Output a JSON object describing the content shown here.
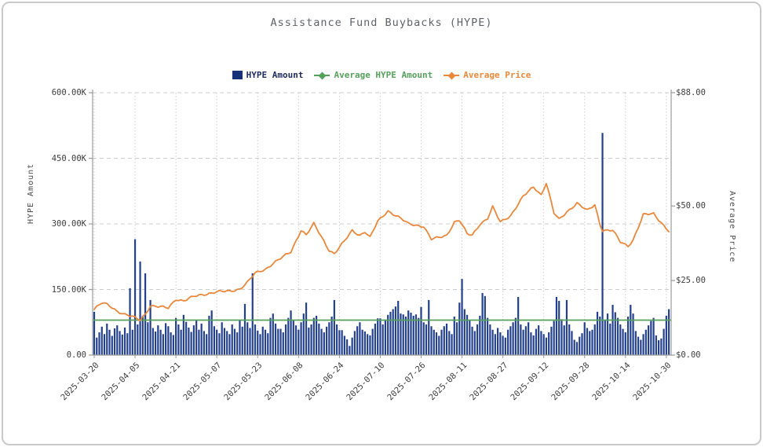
{
  "title": "Assistance Fund Buybacks (HYPE)",
  "legend": {
    "bar_label": "HYPE Amount",
    "avg_label": "Average HYPE Amount",
    "price_label": "Average Price"
  },
  "colors": {
    "bar": "#22408c",
    "bar_legend": "#16307a",
    "avg_line": "#55a05a",
    "price_line": "#e8883c",
    "grid": "#cccccc",
    "axis": "#9a9a9a",
    "title_text": "#5f6368",
    "tick_text": "#3d3d3d"
  },
  "chart_data": {
    "type": "bar",
    "title": "Assistance Fund Buybacks (HYPE)",
    "x_start_date": "2025-03-20",
    "x_interval_days": 1,
    "x_tick_labels": [
      "2025-03-20",
      "2025-04-05",
      "2025-04-21",
      "2025-05-07",
      "2025-05-23",
      "2025-06-08",
      "2025-06-24",
      "2025-07-10",
      "2025-07-26",
      "2025-08-11",
      "2025-08-27",
      "2025-09-12",
      "2025-09-28",
      "2025-10-14",
      "2025-10-30"
    ],
    "x_tick_every_days": 16,
    "left_axis": {
      "title": "HYPE Amount",
      "min": 0,
      "max": 600000,
      "tick_labels": [
        "600.00K",
        "450.00K",
        "300.00K",
        "150.00K",
        "0.00"
      ]
    },
    "right_axis": {
      "title": "Average Price",
      "min": 0,
      "max": 88,
      "tick_labels": [
        "$88.00",
        "$50.00",
        "$25.00",
        "$0.00"
      ],
      "tick_values": [
        88,
        50,
        25,
        0
      ]
    },
    "grid": {
      "horizontal": "dashed",
      "vertical": "dotted"
    },
    "legend_position": "top-center",
    "series": [
      {
        "name": "HYPE Amount",
        "type": "bar",
        "axis": "left",
        "unit": "thousand HYPE",
        "values_in_thousands": [
          99,
          40,
          52,
          65,
          48,
          72,
          58,
          44,
          61,
          68,
          55,
          47,
          63,
          50,
          153,
          58,
          265,
          70,
          214,
          90,
          187,
          75,
          126,
          62,
          54,
          68,
          58,
          48,
          73,
          66,
          52,
          46,
          85,
          70,
          58,
          92,
          76,
          63,
          53,
          68,
          80,
          58,
          72,
          55,
          48,
          90,
          102,
          66,
          58,
          50,
          75,
          62,
          55,
          48,
          70,
          60,
          52,
          80,
          65,
          117,
          75,
          62,
          187,
          70,
          56,
          48,
          65,
          58,
          50,
          85,
          95,
          72,
          60,
          60,
          52,
          70,
          85,
          102,
          80,
          68,
          58,
          75,
          95,
          120,
          63,
          70,
          85,
          90,
          72,
          60,
          52,
          65,
          75,
          88,
          126,
          70,
          57,
          57,
          44,
          36,
          21,
          40,
          55,
          66,
          75,
          58,
          54,
          48,
          45,
          60,
          72,
          84,
          84,
          70,
          80,
          92,
          99,
          105,
          111,
          124,
          95,
          93,
          88,
          102,
          97,
          90,
          93,
          85,
          110,
          75,
          70,
          126,
          66,
          58,
          52,
          44,
          58,
          66,
          72,
          55,
          48,
          88,
          75,
          120,
          174,
          105,
          92,
          80,
          65,
          55,
          70,
          90,
          142,
          135,
          85,
          70,
          58,
          48,
          62,
          52,
          44,
          40,
          58,
          66,
          75,
          85,
          133,
          70,
          58,
          66,
          75,
          52,
          45,
          60,
          68,
          55,
          48,
          40,
          52,
          65,
          78,
          133,
          124,
          82,
          68,
          126,
          70,
          55,
          35,
          30,
          42,
          50,
          75,
          62,
          55,
          58,
          70,
          99,
          88,
          508,
          81,
          95,
          72,
          115,
          98,
          85,
          70,
          60,
          52,
          88,
          115,
          95,
          55,
          42,
          35,
          48,
          58,
          68,
          78,
          85,
          45,
          34,
          38,
          60,
          90,
          105
        ]
      },
      {
        "name": "Average HYPE Amount",
        "type": "line",
        "axis": "left",
        "unit": "thousand HYPE",
        "constant_in_thousands": 80
      },
      {
        "name": "Average Price",
        "type": "line",
        "axis": "right",
        "unit": "USD",
        "keypoints_day_price": [
          [
            0,
            15.3
          ],
          [
            2,
            16.8
          ],
          [
            3,
            17.4
          ],
          [
            5,
            17.0
          ],
          [
            6,
            16.6
          ],
          [
            9,
            14.8
          ],
          [
            12,
            13.6
          ],
          [
            15,
            12.8
          ],
          [
            18,
            11.8
          ],
          [
            20,
            13.8
          ],
          [
            22,
            16.6
          ],
          [
            25,
            16.2
          ],
          [
            29,
            15.8
          ],
          [
            32,
            18.8
          ],
          [
            35,
            18.2
          ],
          [
            39,
            19.6
          ],
          [
            43,
            20.4
          ],
          [
            48,
            21.2
          ],
          [
            53,
            21.4
          ],
          [
            57,
            22.2
          ],
          [
            60,
            24.4
          ],
          [
            63,
            27.4
          ],
          [
            67,
            28.8
          ],
          [
            70,
            30.8
          ],
          [
            73,
            32.4
          ],
          [
            77,
            34.6
          ],
          [
            81,
            42.0
          ],
          [
            83,
            40.3
          ],
          [
            86,
            44.0
          ],
          [
            92,
            35.2
          ],
          [
            94,
            34.0
          ],
          [
            98,
            38.2
          ],
          [
            101,
            41.8
          ],
          [
            104,
            40.2
          ],
          [
            106,
            41.4
          ],
          [
            108,
            39.4
          ],
          [
            111,
            44.8
          ],
          [
            115,
            48.4
          ],
          [
            120,
            45.8
          ],
          [
            123,
            44.0
          ],
          [
            129,
            43.2
          ],
          [
            132,
            38.8
          ],
          [
            135,
            39.4
          ],
          [
            138,
            40.2
          ],
          [
            141,
            44.6
          ],
          [
            143,
            45.2
          ],
          [
            146,
            40.6
          ],
          [
            148,
            40.2
          ],
          [
            151,
            44.0
          ],
          [
            154,
            45.8
          ],
          [
            156,
            49.6
          ],
          [
            159,
            44.6
          ],
          [
            163,
            46.8
          ],
          [
            168,
            53.2
          ],
          [
            172,
            56.4
          ],
          [
            175,
            53.8
          ],
          [
            177,
            57.8
          ],
          [
            180,
            47.6
          ],
          [
            182,
            45.4
          ],
          [
            185,
            48.0
          ],
          [
            189,
            51.0
          ],
          [
            193,
            48.4
          ],
          [
            196,
            50.4
          ],
          [
            198,
            44.0
          ],
          [
            199,
            41.9
          ],
          [
            203,
            41.8
          ],
          [
            206,
            37.9
          ],
          [
            209,
            36.6
          ],
          [
            211,
            38.7
          ],
          [
            215,
            47.0
          ],
          [
            219,
            47.4
          ],
          [
            222,
            44.5
          ],
          [
            225,
            41.6
          ]
        ]
      }
    ]
  }
}
